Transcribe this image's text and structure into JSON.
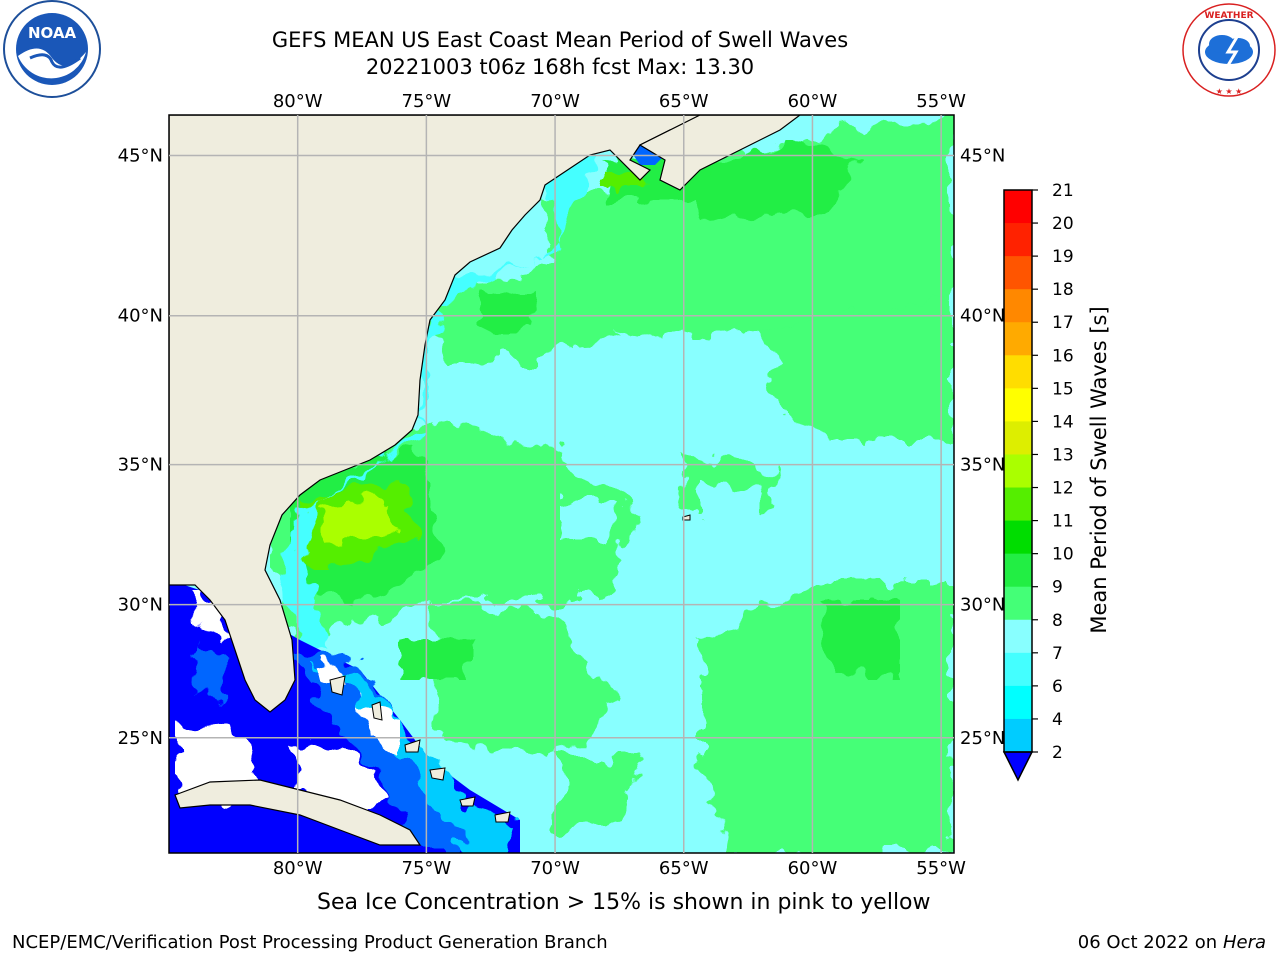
{
  "header": {
    "title_line1": "GEFS MEAN US East Coast Mean Period of Swell Waves",
    "title_line2": "20221003 t06z 168h fcst   Max: 13.30",
    "left_logo_text": "NOAA",
    "left_logo_ring_text": "NATIONAL OCEANIC AND ATMOSPHERIC ADMINISTRATION · U.S. DEPARTMENT OF COMMERCE",
    "right_logo_ring_text": "NATIONAL WEATHER SERVICE"
  },
  "map": {
    "lon_labels": [
      "80°W",
      "75°W",
      "70°W",
      "65°W",
      "60°W",
      "55°W"
    ],
    "lat_labels": [
      "45°N",
      "40°N",
      "35°N",
      "30°N",
      "25°N"
    ],
    "lon_values": [
      -80,
      -75,
      -70,
      -65,
      -60,
      -55
    ],
    "lat_values": [
      45,
      40,
      35,
      30,
      25
    ],
    "extent": {
      "lon": [
        -85,
        -54.5
      ],
      "lat": [
        20.5,
        46.2
      ]
    },
    "land_color": "#efedde",
    "grid_color": "#b4b4b4"
  },
  "colorbar": {
    "label": "Mean Period of Swell Waves [s]",
    "ticks": [
      "2",
      "4",
      "6",
      "7",
      "8",
      "9",
      "10",
      "11",
      "12",
      "13",
      "14",
      "15",
      "16",
      "17",
      "18",
      "19",
      "20",
      "21"
    ],
    "tick_labels_shown": [
      "21",
      "20",
      "19",
      "18",
      "17",
      "16",
      "15",
      "14",
      "13",
      "12",
      "11",
      "10",
      "9",
      "8",
      "7",
      "6",
      "4",
      "2"
    ],
    "colors": [
      "#0000ff",
      "#0066ff",
      "#00ccff",
      "#00ffff",
      "#44ffff",
      "#88ffff",
      "#44ff77",
      "#22ee44",
      "#00dd00",
      "#55ee00",
      "#aaff00",
      "#ddee00",
      "#ffff00",
      "#ffdd00",
      "#ffaa00",
      "#ff8800",
      "#ff5500",
      "#ff2200",
      "#ff0000"
    ]
  },
  "caption": "Sea Ice Concentration > 15% is shown in pink to yellow",
  "footer": {
    "left": "NCEP/EMC/Verification Post Processing Product Generation Branch",
    "date": "06 Oct 2022 on ",
    "machine": "Hera"
  }
}
